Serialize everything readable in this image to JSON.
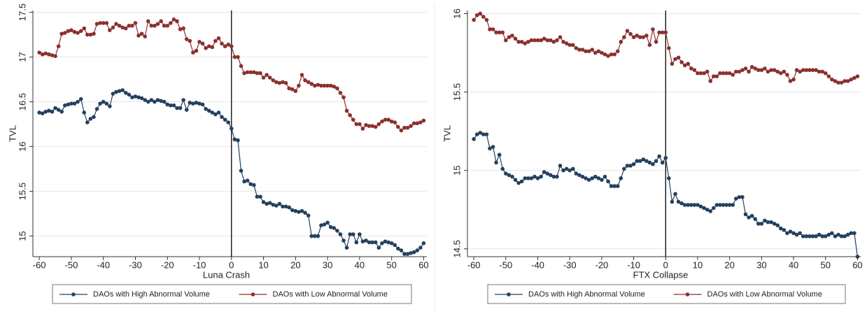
{
  "chart_data": [
    {
      "type": "line",
      "xlabel": "Luna Crash",
      "ylabel": "TVL",
      "vline": 0,
      "grid": true,
      "x": [
        -60,
        -59,
        -58,
        -57,
        -56,
        -55,
        -54,
        -53,
        -52,
        -51,
        -50,
        -49,
        -48,
        -47,
        -46,
        -45,
        -44,
        -43,
        -42,
        -41,
        -40,
        -39,
        -38,
        -37,
        -36,
        -35,
        -34,
        -33,
        -32,
        -31,
        -30,
        -29,
        -28,
        -27,
        -26,
        -25,
        -24,
        -23,
        -22,
        -21,
        -20,
        -19,
        -18,
        -17,
        -16,
        -15,
        -14,
        -13,
        -12,
        -11,
        -10,
        -9,
        -8,
        -7,
        -6,
        -5,
        -4,
        -3,
        -2,
        -1,
        0,
        1,
        2,
        3,
        4,
        5,
        6,
        7,
        8,
        9,
        10,
        11,
        12,
        13,
        14,
        15,
        16,
        17,
        18,
        19,
        20,
        21,
        22,
        23,
        24,
        25,
        26,
        27,
        28,
        29,
        30,
        31,
        32,
        33,
        34,
        35,
        36,
        37,
        38,
        39,
        40,
        41,
        42,
        43,
        44,
        45,
        46,
        47,
        48,
        49,
        50,
        51,
        52,
        53,
        54,
        55,
        56,
        57,
        58,
        59,
        60
      ],
      "xlim": [
        -62,
        61
      ],
      "xticks": [
        -60,
        -50,
        -40,
        -30,
        -20,
        -10,
        0,
        10,
        20,
        30,
        40,
        50,
        60
      ],
      "ylim": [
        14.77,
        17.52
      ],
      "yticks": [
        15,
        15.5,
        16,
        16.5,
        17,
        17.5
      ],
      "series": [
        {
          "name": "DAOs with High Abnormal Volume",
          "color": "#24405f",
          "values": [
            16.38,
            16.37,
            16.39,
            16.4,
            16.39,
            16.43,
            16.41,
            16.39,
            16.46,
            16.47,
            16.48,
            16.48,
            16.5,
            16.53,
            16.38,
            16.27,
            16.31,
            16.33,
            16.42,
            16.48,
            16.5,
            16.48,
            16.45,
            16.59,
            16.61,
            16.62,
            16.63,
            16.6,
            16.58,
            16.55,
            16.56,
            16.55,
            16.54,
            16.52,
            16.5,
            16.52,
            16.5,
            16.52,
            16.51,
            16.5,
            16.47,
            16.46,
            16.46,
            16.43,
            16.43,
            16.52,
            16.41,
            16.49,
            16.48,
            16.49,
            16.48,
            16.47,
            16.42,
            16.4,
            16.38,
            16.36,
            16.38,
            16.33,
            16.3,
            16.27,
            16.2,
            16.08,
            16.07,
            15.73,
            15.61,
            15.62,
            15.58,
            15.57,
            15.44,
            15.44,
            15.38,
            15.36,
            15.37,
            15.35,
            15.34,
            15.36,
            15.33,
            15.33,
            15.32,
            15.29,
            15.28,
            15.27,
            15.28,
            15.26,
            15.23,
            15.0,
            15.0,
            15.0,
            15.12,
            15.13,
            15.15,
            15.1,
            15.09,
            15.06,
            15.02,
            14.95,
            14.87,
            15.02,
            15.02,
            14.93,
            15.02,
            14.94,
            14.95,
            14.93,
            14.93,
            14.93,
            14.87,
            14.92,
            14.94,
            14.93,
            14.92,
            14.9,
            14.86,
            14.84,
            14.8,
            14.8,
            14.81,
            14.82,
            14.84,
            14.87,
            14.92
          ]
        },
        {
          "name": "DAOs with Low Abnormal Volume",
          "color": "#8c2f2f",
          "values": [
            17.05,
            17.03,
            17.04,
            17.03,
            17.02,
            17.01,
            17.12,
            17.26,
            17.27,
            17.29,
            17.3,
            17.28,
            17.27,
            17.29,
            17.32,
            17.25,
            17.25,
            17.26,
            17.37,
            17.38,
            17.38,
            17.38,
            17.3,
            17.33,
            17.37,
            17.35,
            17.33,
            17.32,
            17.35,
            17.35,
            17.38,
            17.24,
            17.26,
            17.23,
            17.4,
            17.35,
            17.35,
            17.37,
            17.4,
            17.35,
            17.35,
            17.38,
            17.42,
            17.4,
            17.31,
            17.32,
            17.2,
            17.18,
            17.05,
            17.07,
            17.17,
            17.15,
            17.1,
            17.12,
            17.11,
            17.18,
            17.21,
            17.15,
            17.12,
            17.14,
            17.12,
            17.0,
            17.0,
            16.9,
            16.82,
            16.83,
            16.83,
            16.83,
            16.82,
            16.82,
            16.77,
            16.8,
            16.77,
            16.74,
            16.72,
            16.71,
            16.72,
            16.71,
            16.65,
            16.64,
            16.62,
            16.68,
            16.8,
            16.74,
            16.72,
            16.7,
            16.68,
            16.69,
            16.68,
            16.68,
            16.68,
            16.68,
            16.67,
            16.65,
            16.6,
            16.55,
            16.4,
            16.35,
            16.3,
            16.25,
            16.25,
            16.2,
            16.24,
            16.23,
            16.23,
            16.22,
            16.25,
            16.28,
            16.3,
            16.3,
            16.28,
            16.27,
            16.22,
            16.18,
            16.21,
            16.21,
            16.23,
            16.26,
            16.26,
            16.27,
            16.29
          ]
        }
      ]
    },
    {
      "type": "line",
      "xlabel": "FTX Collapse",
      "ylabel": "TVL",
      "vline": 0,
      "grid": true,
      "x": [
        -60,
        -59,
        -58,
        -57,
        -56,
        -55,
        -54,
        -53,
        -52,
        -51,
        -50,
        -49,
        -48,
        -47,
        -46,
        -45,
        -44,
        -43,
        -42,
        -41,
        -40,
        -39,
        -38,
        -37,
        -36,
        -35,
        -34,
        -33,
        -32,
        -31,
        -30,
        -29,
        -28,
        -27,
        -26,
        -25,
        -24,
        -23,
        -22,
        -21,
        -20,
        -19,
        -18,
        -17,
        -16,
        -15,
        -14,
        -13,
        -12,
        -11,
        -10,
        -9,
        -8,
        -7,
        -6,
        -5,
        -4,
        -3,
        -2,
        -1,
        0,
        1,
        2,
        3,
        4,
        5,
        6,
        7,
        8,
        9,
        10,
        11,
        12,
        13,
        14,
        15,
        16,
        17,
        18,
        19,
        20,
        21,
        22,
        23,
        24,
        25,
        26,
        27,
        28,
        29,
        30,
        31,
        32,
        33,
        34,
        35,
        36,
        37,
        38,
        39,
        40,
        41,
        42,
        43,
        44,
        45,
        46,
        47,
        48,
        49,
        50,
        51,
        52,
        53,
        54,
        55,
        56,
        57,
        58,
        59,
        60
      ],
      "xlim": [
        -62,
        61
      ],
      "xticks": [
        -60,
        -50,
        -40,
        -30,
        -20,
        -10,
        0,
        10,
        20,
        30,
        40,
        50,
        60
      ],
      "ylim": [
        14.45,
        16.02
      ],
      "yticks": [
        14.5,
        15,
        15.5,
        16
      ],
      "series": [
        {
          "name": "DAOs with High Abnormal Volume",
          "color": "#24405f",
          "values": [
            15.2,
            15.23,
            15.24,
            15.23,
            15.23,
            15.14,
            15.15,
            15.05,
            15.1,
            15.01,
            14.98,
            14.97,
            14.96,
            14.94,
            14.92,
            14.93,
            14.95,
            14.95,
            14.95,
            14.96,
            14.95,
            14.96,
            14.99,
            14.98,
            14.97,
            14.96,
            14.96,
            15.03,
            15.0,
            15.01,
            15.0,
            15.01,
            14.98,
            14.97,
            14.96,
            14.95,
            14.94,
            14.95,
            14.96,
            14.95,
            14.94,
            14.96,
            14.93,
            14.9,
            14.9,
            14.9,
            14.95,
            15.01,
            15.03,
            15.03,
            15.04,
            15.06,
            15.06,
            15.07,
            15.06,
            15.05,
            15.04,
            15.06,
            15.09,
            15.05,
            15.08,
            14.95,
            14.8,
            14.85,
            14.8,
            14.79,
            14.78,
            14.78,
            14.78,
            14.78,
            14.78,
            14.77,
            14.76,
            14.75,
            14.74,
            14.76,
            14.78,
            14.78,
            14.78,
            14.78,
            14.78,
            14.78,
            14.82,
            14.83,
            14.83,
            14.72,
            14.7,
            14.71,
            14.69,
            14.66,
            14.66,
            14.68,
            14.67,
            14.67,
            14.66,
            14.65,
            14.63,
            14.62,
            14.6,
            14.61,
            14.6,
            14.59,
            14.6,
            14.58,
            14.58,
            14.58,
            14.58,
            14.58,
            14.59,
            14.58,
            14.58,
            14.59,
            14.6,
            14.58,
            14.59,
            14.58,
            14.58,
            14.59,
            14.6,
            14.6,
            14.45
          ]
        },
        {
          "name": "DAOs with Low Abnormal Volume",
          "color": "#8c2f2f",
          "values": [
            15.96,
            15.99,
            16.0,
            15.98,
            15.96,
            15.9,
            15.9,
            15.88,
            15.88,
            15.88,
            15.83,
            15.85,
            15.86,
            15.84,
            15.82,
            15.82,
            15.81,
            15.82,
            15.83,
            15.83,
            15.83,
            15.83,
            15.84,
            15.83,
            15.83,
            15.82,
            15.83,
            15.85,
            15.82,
            15.81,
            15.8,
            15.8,
            15.78,
            15.77,
            15.77,
            15.76,
            15.76,
            15.77,
            15.75,
            15.76,
            15.75,
            15.74,
            15.73,
            15.74,
            15.74,
            15.76,
            15.82,
            15.85,
            15.89,
            15.87,
            15.85,
            15.86,
            15.85,
            15.85,
            15.86,
            15.8,
            15.9,
            15.82,
            15.88,
            15.88,
            15.88,
            15.78,
            15.68,
            15.71,
            15.72,
            15.69,
            15.67,
            15.68,
            15.65,
            15.64,
            15.62,
            15.62,
            15.62,
            15.63,
            15.57,
            15.6,
            15.6,
            15.62,
            15.62,
            15.62,
            15.62,
            15.61,
            15.63,
            15.63,
            15.64,
            15.65,
            15.63,
            15.66,
            15.65,
            15.64,
            15.64,
            15.65,
            15.63,
            15.64,
            15.64,
            15.63,
            15.62,
            15.63,
            15.61,
            15.57,
            15.58,
            15.64,
            15.63,
            15.64,
            15.64,
            15.64,
            15.64,
            15.64,
            15.63,
            15.63,
            15.62,
            15.6,
            15.58,
            15.57,
            15.56,
            15.56,
            15.57,
            15.57,
            15.58,
            15.59,
            15.6
          ]
        }
      ]
    }
  ]
}
